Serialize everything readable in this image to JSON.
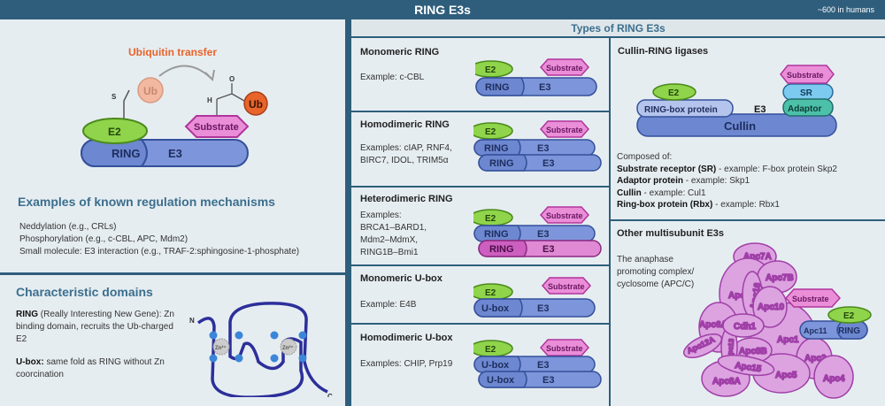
{
  "header": {
    "title": "RING E3s",
    "subtitle": "~600 in humans"
  },
  "labels": {
    "e2": "E2",
    "ring": "RING",
    "e3": "E3",
    "substrate": "Substrate",
    "ub": "Ub",
    "ubox": "U-box",
    "n": "N",
    "c": "C",
    "zn": "Zn²⁺",
    "s": "S",
    "h": "H",
    "o": "O"
  },
  "transfer": {
    "title": "Ubiquitin transfer"
  },
  "regulation": {
    "title": "Examples of known regulation mechanisms",
    "items": [
      "Neddylation (e.g., CRLs)",
      "Phosphorylation (e.g., c-CBL, APC, Mdm2)",
      "Small molecule: E3 interaction (e.g., TRAF-2:sphingosine-1-phosphate)"
    ]
  },
  "domains": {
    "title": "Characteristic domains",
    "ring_term": "RING",
    "ring_text": "(Really Interesting New Gene): Zn binding domain, recruits the Ub-charged E2",
    "ubox_term": "U-box:",
    "ubox_text": "same fold as RING without Zn coorcination"
  },
  "types": {
    "title": "Types of RING E3s",
    "monomeric_ring": {
      "title": "Monomeric RING",
      "example": "Example: c-CBL"
    },
    "homodimeric_ring": {
      "title": "Homodimeric RING",
      "example": "Examples: cIAP, RNF4, BIRC7, IDOL, TRIM5α"
    },
    "heterodimeric_ring": {
      "title": "Heterodimeric RING",
      "examples": [
        "Examples:",
        "BRCA1–BARD1,",
        "Mdm2–MdmX,",
        "RING1B–Bmi1"
      ]
    },
    "monomeric_ubox": {
      "title": "Monomeric U-box",
      "example": "Example: E4B"
    },
    "homodimeric_ubox": {
      "title": "Homodimeric U-box",
      "example": "Examples: CHIP, Prp19"
    }
  },
  "cullin": {
    "title": "Cullin-RING ligases",
    "ringbox": "RING-box protein",
    "sr": "SR",
    "adaptor": "Adaptor",
    "cullin": "Cullin",
    "composed": "Composed of:",
    "items": [
      {
        "term": "Substrate receptor (SR)",
        "text": " - example: F-box protein Skp2"
      },
      {
        "term": "Adaptor protein",
        "text": " - example: Skp1"
      },
      {
        "term": "Cullin",
        "text": " - example: Cul1"
      },
      {
        "term": "Ring-box protein (Rbx)",
        "text": " -  example: Rbx1"
      }
    ]
  },
  "other": {
    "title": "Other multisubunit E3s",
    "text": [
      "The anaphase",
      "promoting complex/",
      "cyclosome (APC/C)"
    ],
    "subunits": {
      "apc7a": "Apc7A",
      "apc7b": "Apc7B",
      "apc3a": "Apc3A",
      "apc16": "Apc16",
      "apc10": "Apc10",
      "apc6a": "Apc6A",
      "cdh1": "Cdh1",
      "apc1": "Apc1",
      "apc12a": "Apc12A",
      "apc13": "Apc13",
      "apc8b": "Apc8B",
      "apc15": "Apc15",
      "apc8a": "Apc8A",
      "apc5": "Apc5",
      "apc2": "Apc2",
      "apc4": "Apc4",
      "apc11": "Apc11"
    }
  },
  "colors": {
    "frame": "#2f5e7c",
    "panel": "#e6edf1",
    "e2": "#8fd44a",
    "ring": "#6d87d0",
    "substrate": "#ea8ed8",
    "ub": "#e8642a",
    "hetero": "#cc5fc0",
    "sr": "#7ccaf0",
    "adaptor": "#4cc0a8",
    "apc": "#dca3e0"
  }
}
